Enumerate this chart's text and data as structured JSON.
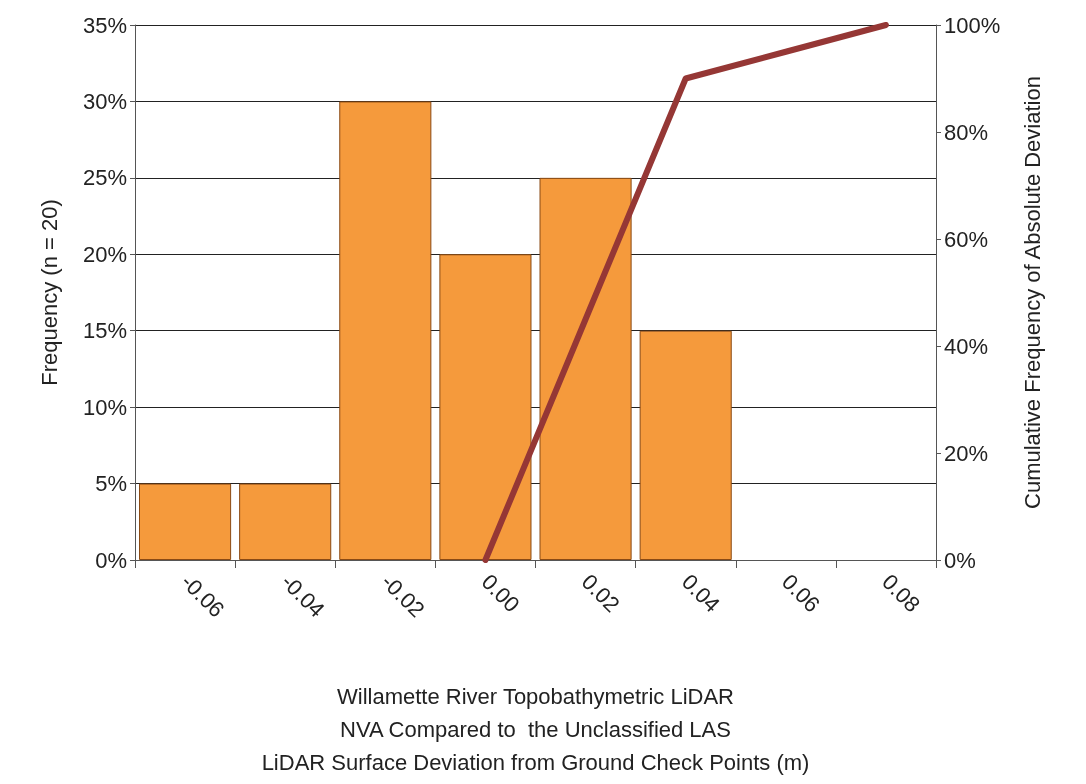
{
  "chart_data": {
    "type": "bar",
    "categories": [
      "-0.06",
      "-0.04",
      "-0.02",
      "0.00",
      "0.02",
      "0.04",
      "0.06",
      "0.08"
    ],
    "series": [
      {
        "color": "#f59a3c",
        "values": [
          5,
          5,
          30,
          20,
          25,
          15,
          null,
          null
        ]
      },
      {
        "type": "line",
        "axis": "y2",
        "color": "#953735",
        "values": [
          null,
          null,
          null,
          0,
          45,
          90,
          95,
          100
        ]
      }
    ],
    "xlabel": "Willamette River Topobathymetric LiDAR\nNVA Compared to  the Unclassified LAS\nLiDAR Surface Deviation from Ground Check Points (m)",
    "ylabel": "Frequency (n = 20)",
    "y2label": "Cumulative Frequency of Absolute Deviation",
    "ylim": [
      0,
      35
    ],
    "yticks": [
      {
        "value": 0,
        "label": "0%"
      },
      {
        "value": 5,
        "label": "5%"
      },
      {
        "value": 10,
        "label": "10%"
      },
      {
        "value": 15,
        "label": "15%"
      },
      {
        "value": 20,
        "label": "20%"
      },
      {
        "value": 25,
        "label": "25%"
      },
      {
        "value": 30,
        "label": "30%"
      },
      {
        "value": 35,
        "label": "35%"
      }
    ],
    "y2lim": [
      0,
      100
    ],
    "y2ticks": [
      {
        "value": 0,
        "label": "0%"
      },
      {
        "value": 20,
        "label": "20%"
      },
      {
        "value": 40,
        "label": "40%"
      },
      {
        "value": 60,
        "label": "60%"
      },
      {
        "value": 80,
        "label": "80%"
      },
      {
        "value": 100,
        "label": "100%"
      }
    ],
    "grid": "y",
    "marker": "none",
    "line_style": "solid"
  }
}
